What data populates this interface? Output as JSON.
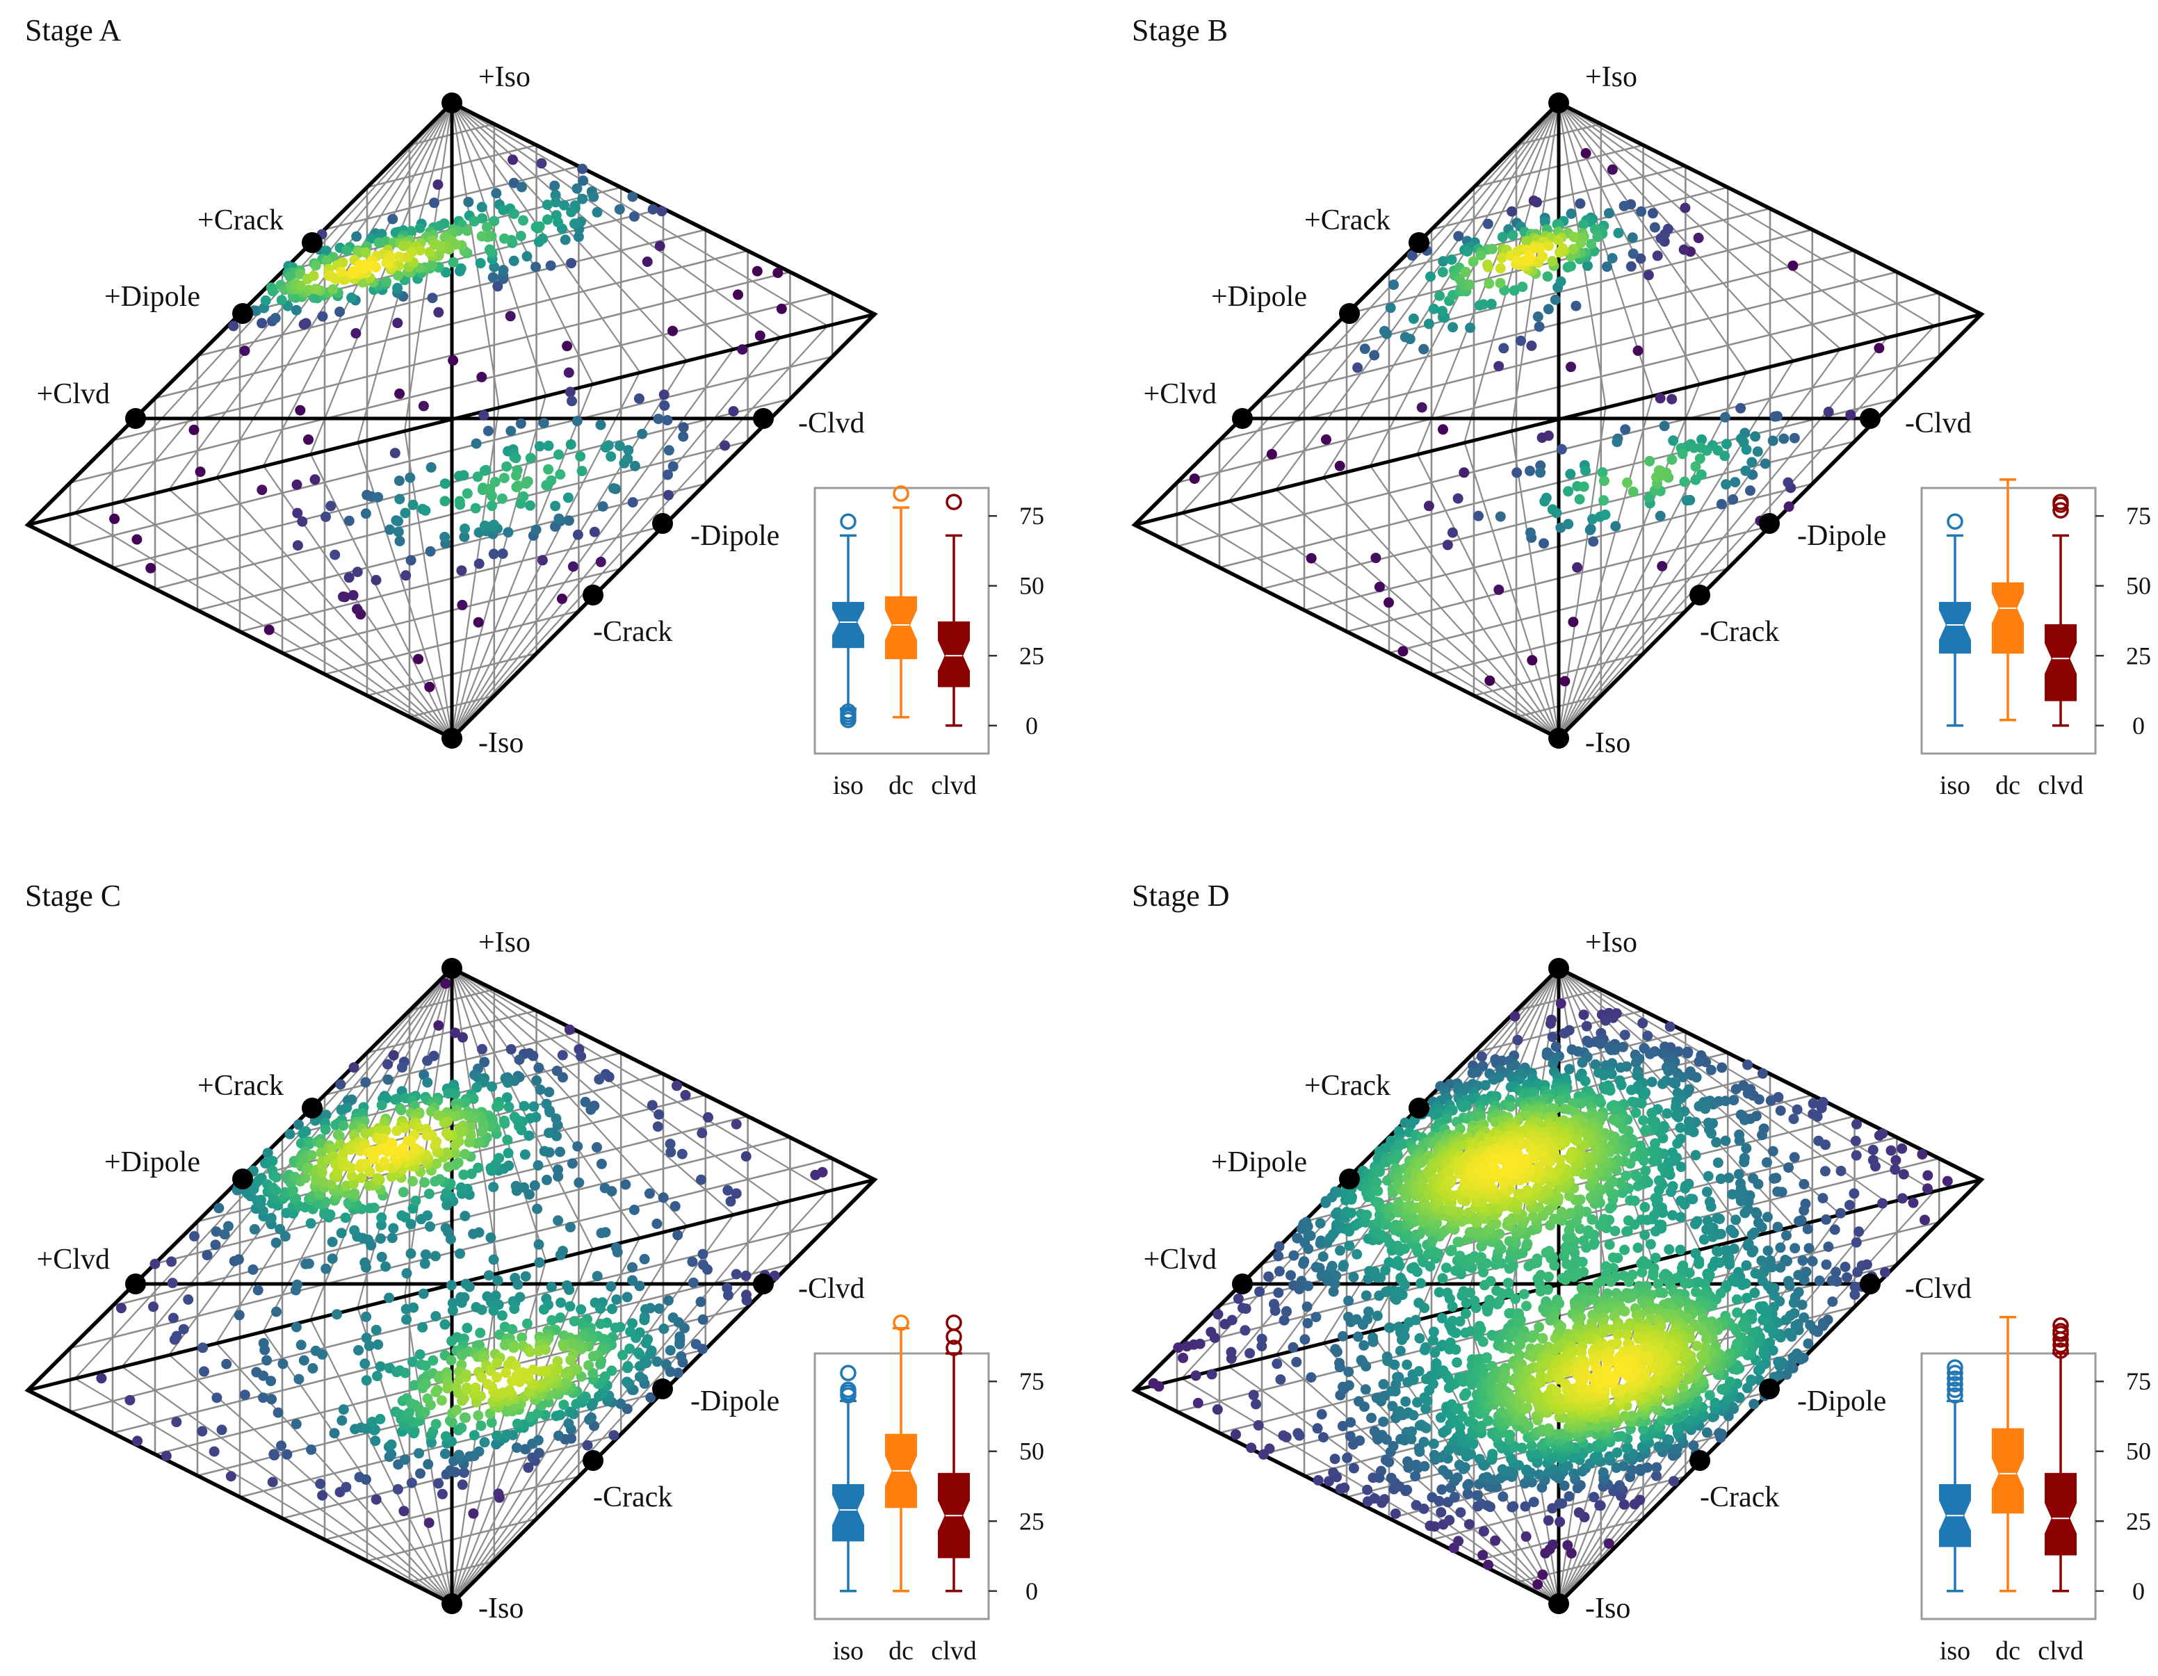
{
  "figure": {
    "type": "figure-grid"
  },
  "chart_data": [
    {
      "stage": "A",
      "title": "Stage A",
      "type": "scatter",
      "plot": "source-type diagram (Hudson plot)",
      "vertex_labels": {
        "pos_iso": "+Iso",
        "neg_iso": "-Iso",
        "pos_crack": "+Crack",
        "neg_crack": "-Crack",
        "pos_dipole": "+Dipole",
        "neg_dipole": "-Dipole",
        "pos_clvd": "+Clvd",
        "neg_clvd": "-Clvd"
      },
      "density": {
        "clusters": [
          {
            "uv": [
              -0.25,
              0.55
            ],
            "sx": 0.17,
            "sy": 0.06,
            "n": 200
          },
          {
            "uv": [
              0.12,
              0.55
            ],
            "sx": 0.22,
            "sy": 0.1,
            "n": 120
          },
          {
            "uv": [
              0.15,
              -0.25
            ],
            "sx": 0.25,
            "sy": 0.12,
            "n": 140
          }
        ],
        "uniform_n": 90
      },
      "boxplot": {
        "type": "box",
        "categories": [
          "iso",
          "dc",
          "clvd"
        ],
        "yticks": [
          0,
          25,
          50,
          75
        ],
        "ylim": [
          -10,
          85
        ],
        "colors": [
          "#1f77b4",
          "#ff7f0e",
          "#8b0000"
        ],
        "boxes": [
          {
            "label": "iso",
            "whislo": 6,
            "q1": 28,
            "med": 37,
            "q3": 44,
            "whishi": 68,
            "fliers": [
              73,
              5,
              4,
              3,
              2
            ]
          },
          {
            "label": "dc",
            "whislo": 3,
            "q1": 24,
            "med": 36,
            "q3": 46,
            "whishi": 78,
            "fliers": [
              83
            ]
          },
          {
            "label": "clvd",
            "whislo": 0,
            "q1": 14,
            "med": 25,
            "q3": 37,
            "whishi": 68,
            "fliers": [
              80
            ]
          }
        ]
      }
    },
    {
      "stage": "B",
      "title": "Stage B",
      "type": "scatter",
      "plot": "source-type diagram (Hudson plot)",
      "vertex_labels": {
        "pos_iso": "+Iso",
        "neg_iso": "-Iso",
        "pos_crack": "+Crack",
        "neg_crack": "-Crack",
        "pos_dipole": "+Dipole",
        "neg_dipole": "-Dipole",
        "pos_clvd": "+Clvd",
        "neg_clvd": "-Clvd"
      },
      "density": {
        "clusters": [
          {
            "uv": [
              -0.05,
              0.55
            ],
            "sx": 0.14,
            "sy": 0.06,
            "n": 120
          },
          {
            "uv": [
              -0.2,
              0.45
            ],
            "sx": 0.22,
            "sy": 0.12,
            "n": 70
          },
          {
            "uv": [
              0.2,
              -0.25
            ],
            "sx": 0.22,
            "sy": 0.1,
            "n": 110
          }
        ],
        "uniform_n": 60
      },
      "boxplot": {
        "type": "box",
        "categories": [
          "iso",
          "dc",
          "clvd"
        ],
        "yticks": [
          0,
          25,
          50,
          75
        ],
        "ylim": [
          -10,
          85
        ],
        "colors": [
          "#1f77b4",
          "#ff7f0e",
          "#8b0000"
        ],
        "boxes": [
          {
            "label": "iso",
            "whislo": 0,
            "q1": 26,
            "med": 36,
            "q3": 44,
            "whishi": 68,
            "fliers": [
              73
            ]
          },
          {
            "label": "dc",
            "whislo": 2,
            "q1": 26,
            "med": 42,
            "q3": 51,
            "whishi": 88,
            "fliers": []
          },
          {
            "label": "clvd",
            "whislo": 0,
            "q1": 9,
            "med": 24,
            "q3": 36,
            "whishi": 68,
            "fliers": [
              77,
              79,
              80
            ]
          }
        ]
      }
    },
    {
      "stage": "C",
      "title": "Stage C",
      "type": "scatter",
      "plot": "source-type diagram (Hudson plot)",
      "vertex_labels": {
        "pos_iso": "+Iso",
        "neg_iso": "-Iso",
        "pos_crack": "+Crack",
        "neg_crack": "-Crack",
        "pos_dipole": "+Dipole",
        "neg_dipole": "-Dipole",
        "pos_clvd": "+Clvd",
        "neg_clvd": "-Clvd"
      },
      "density": {
        "clusters": [
          {
            "uv": [
              -0.15,
              0.48
            ],
            "sx": 0.22,
            "sy": 0.12,
            "n": 520
          },
          {
            "uv": [
              0.15,
              -0.35
            ],
            "sx": 0.22,
            "sy": 0.12,
            "n": 420
          },
          {
            "uv": [
              0.0,
              0.0
            ],
            "sx": 0.45,
            "sy": 0.35,
            "n": 200
          }
        ],
        "uniform_n": 160
      },
      "boxplot": {
        "type": "box",
        "categories": [
          "iso",
          "dc",
          "clvd"
        ],
        "yticks": [
          0,
          25,
          50,
          75
        ],
        "ylim": [
          -10,
          85
        ],
        "colors": [
          "#1f77b4",
          "#ff7f0e",
          "#8b0000"
        ],
        "boxes": [
          {
            "label": "iso",
            "whislo": 0,
            "q1": 18,
            "med": 29,
            "q3": 38,
            "whishi": 68,
            "fliers": [
              70,
              71,
              72,
              78
            ]
          },
          {
            "label": "dc",
            "whislo": 0,
            "q1": 30,
            "med": 43,
            "q3": 56,
            "whishi": 94,
            "fliers": [
              96
            ]
          },
          {
            "label": "clvd",
            "whislo": 0,
            "q1": 12,
            "med": 27,
            "q3": 42,
            "whishi": 85,
            "fliers": [
              87,
              91,
              96
            ]
          }
        ]
      }
    },
    {
      "stage": "D",
      "title": "Stage D",
      "type": "scatter",
      "plot": "source-type diagram (Hudson plot)",
      "vertex_labels": {
        "pos_iso": "+Iso",
        "neg_iso": "-Iso",
        "pos_crack": "+Crack",
        "neg_crack": "-Crack",
        "pos_dipole": "+Dipole",
        "neg_dipole": "-Dipole",
        "pos_clvd": "+Clvd",
        "neg_clvd": "-Clvd"
      },
      "density": {
        "clusters": [
          {
            "uv": [
              -0.15,
              0.45
            ],
            "sx": 0.25,
            "sy": 0.16,
            "n": 1300
          },
          {
            "uv": [
              0.15,
              -0.35
            ],
            "sx": 0.25,
            "sy": 0.16,
            "n": 1300
          },
          {
            "uv": [
              0.0,
              0.05
            ],
            "sx": 0.4,
            "sy": 0.35,
            "n": 900
          }
        ],
        "uniform_n": 500
      },
      "boxplot": {
        "type": "box",
        "categories": [
          "iso",
          "dc",
          "clvd"
        ],
        "yticks": [
          0,
          25,
          50,
          75
        ],
        "ylim": [
          -10,
          85
        ],
        "colors": [
          "#1f77b4",
          "#ff7f0e",
          "#8b0000"
        ],
        "boxes": [
          {
            "label": "iso",
            "whislo": 0,
            "q1": 16,
            "med": 27,
            "q3": 38,
            "whishi": 68,
            "fliers": [
              70,
              72,
              74,
              76,
              78,
              80
            ]
          },
          {
            "label": "dc",
            "whislo": 0,
            "q1": 28,
            "med": 42,
            "q3": 58,
            "whishi": 98,
            "fliers": []
          },
          {
            "label": "clvd",
            "whislo": 0,
            "q1": 13,
            "med": 26,
            "q3": 42,
            "whishi": 85,
            "fliers": [
              86,
              88,
              90,
              92,
              93,
              95
            ]
          }
        ]
      }
    }
  ]
}
